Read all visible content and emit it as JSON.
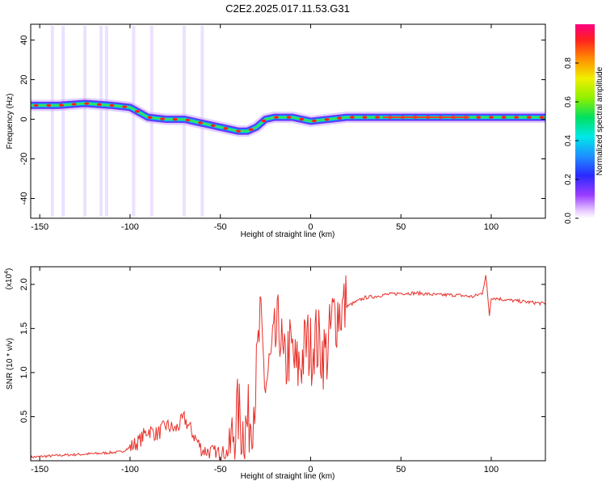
{
  "title": "C2E2.2025.017.11.53.G31",
  "chart_data": [
    {
      "type": "heatmap",
      "xlabel": "Height of straight line (km)",
      "ylabel": "Frequency (Hz)",
      "xlim": [
        -155,
        130
      ],
      "ylim": [
        -50,
        48
      ],
      "xticks": [
        -150,
        -100,
        -50,
        0,
        50,
        100
      ],
      "yticks": [
        40,
        20,
        0,
        -20,
        -40
      ],
      "colorbar": {
        "label": "Normalized spectral amplitude",
        "range": [
          0.0,
          1.0
        ],
        "ticks": [
          0.0,
          0.2,
          0.4,
          0.6,
          0.8
        ],
        "tick_labels": [
          "0.0",
          "0.2",
          "0.4",
          "0.6",
          "0.8"
        ]
      },
      "ridge": {
        "x": [
          -155,
          -140,
          -125,
          -110,
          -100,
          -90,
          -80,
          -70,
          -60,
          -50,
          -40,
          -35,
          -30,
          -25,
          -20,
          -10,
          0,
          10,
          20,
          40,
          60,
          80,
          95,
          110,
          130
        ],
        "frequency": [
          7,
          7,
          8,
          7,
          6,
          1,
          0,
          0,
          -2,
          -4,
          -6,
          -6,
          -4,
          0,
          1,
          1,
          -1,
          0,
          1,
          1,
          1,
          1,
          1,
          1,
          1
        ]
      },
      "grid": false
    },
    {
      "type": "line",
      "xlabel": "Height of straight line (km)",
      "ylabel": "SNR (10 * v/v)",
      "y_multiplier": "(x10^4)",
      "y_multiplier_base": "(x10",
      "y_multiplier_exp": "4",
      "xlim": [
        -155,
        130
      ],
      "ylim": [
        0,
        2.2
      ],
      "xticks": [
        -150,
        -100,
        -50,
        0,
        50,
        100
      ],
      "yticks": [
        2.0,
        1.5,
        1.0,
        0.5
      ],
      "ytick_labels": [
        "2.0",
        "1.5",
        "1.0",
        "0.5"
      ],
      "series": [
        {
          "color": "#e8302a",
          "x": [
            -155,
            -140,
            -120,
            -105,
            -100,
            -95,
            -90,
            -85,
            -80,
            -75,
            -70,
            -65,
            -60,
            -55,
            -50,
            -45,
            -42,
            -40,
            -38,
            -35,
            -32,
            -30,
            -28,
            -25,
            -22,
            -20,
            -17,
            -15,
            -12,
            -10,
            -8,
            -5,
            -2,
            0,
            2,
            5,
            8,
            10,
            12,
            15,
            20,
            25,
            30,
            35,
            40,
            50,
            60,
            70,
            80,
            90,
            95,
            97,
            99,
            100,
            110,
            120,
            130
          ],
          "y": [
            0.04,
            0.06,
            0.08,
            0.1,
            0.15,
            0.22,
            0.35,
            0.3,
            0.4,
            0.35,
            0.48,
            0.3,
            0.12,
            0.1,
            0.08,
            0.1,
            0.4,
            0.55,
            0.35,
            0.4,
            0.6,
            0.95,
            1.55,
            0.85,
            1.1,
            1.3,
            1.55,
            1.0,
            1.25,
            1.2,
            1.0,
            1.15,
            1.35,
            1.25,
            1.4,
            1.3,
            1.2,
            1.3,
            1.6,
            1.7,
            1.75,
            1.8,
            1.85,
            1.86,
            1.88,
            1.9,
            1.9,
            1.88,
            1.88,
            1.86,
            1.9,
            2.1,
            1.65,
            1.85,
            1.82,
            1.8,
            1.78
          ]
        }
      ],
      "grid": false
    }
  ]
}
